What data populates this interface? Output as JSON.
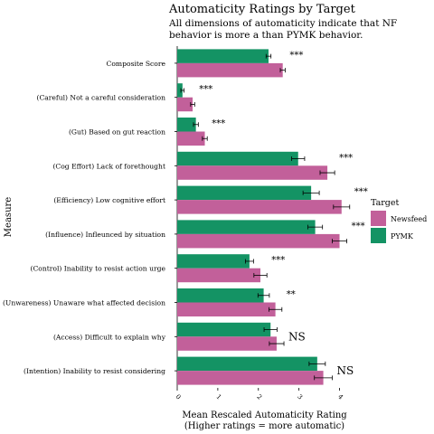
{
  "chart_data": {
    "type": "bar",
    "orientation": "horizontal",
    "title": "Automaticity Ratings by Target",
    "subtitle": "All dimensions of automaticity indicate that NF behavior is more a than PYMK behavior.",
    "xlabel": "Mean Rescaled Automaticity Rating\n(Higher ratings = more automatic)",
    "ylabel": "Measure",
    "xlim": [
      0,
      4.3
    ],
    "x_ticks": [
      "0",
      "1",
      "2",
      "3",
      "4"
    ],
    "grid": false,
    "legend_title": "Target",
    "legend_position": "right",
    "categories": [
      "Composite Score",
      "(Careful) Not a careful consideration",
      "(Gut) Based on gut reaction",
      "(Cog Effort) Lack of forethought",
      "(Efficiency) Low cognitive effort",
      "(Influence) Infleunced by situation",
      "(Control) Inability to resist action urge",
      "(Unwareness) Unaware what affected decision",
      "(Access) Difficult to explain why",
      "(Intention) Inability to resist considering"
    ],
    "series": [
      {
        "name": "Newsfeed",
        "color": "#c2609a",
        "values": [
          2.6,
          0.38,
          0.68,
          3.7,
          4.05,
          4.0,
          2.05,
          2.42,
          2.45,
          3.6
        ],
        "errors": [
          0.06,
          0.05,
          0.06,
          0.18,
          0.2,
          0.18,
          0.16,
          0.16,
          0.18,
          0.22
        ]
      },
      {
        "name": "PYMK",
        "color": "#149364",
        "values": [
          2.25,
          0.13,
          0.46,
          2.98,
          3.3,
          3.4,
          1.78,
          2.13,
          2.3,
          3.45
        ],
        "errors": [
          0.06,
          0.04,
          0.06,
          0.16,
          0.2,
          0.18,
          0.1,
          0.14,
          0.16,
          0.2
        ]
      }
    ],
    "significance": [
      "***",
      "***",
      "***",
      "***",
      "***",
      "***",
      "***",
      "**",
      "NS",
      "NS"
    ]
  }
}
